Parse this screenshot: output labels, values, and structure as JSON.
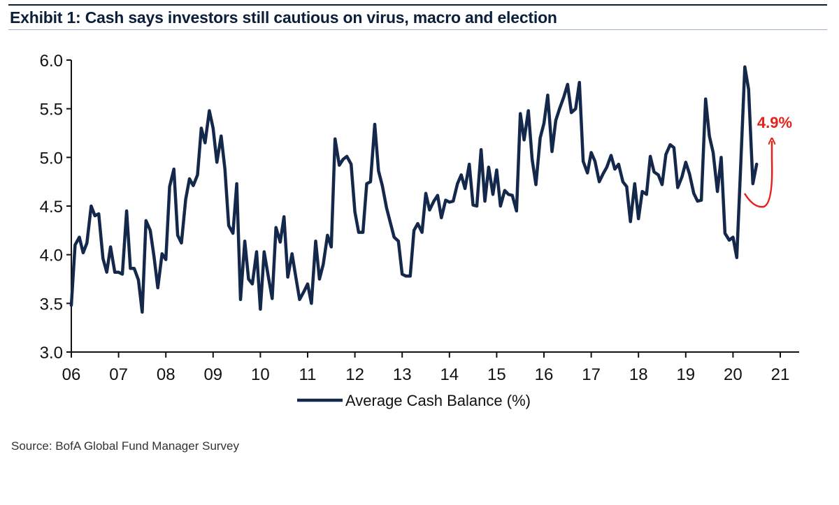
{
  "header": {
    "title": "Exhibit 1: Cash says investors still cautious on virus, macro and election"
  },
  "footer": {
    "source": "Source: BofA Global Fund Manager Survey"
  },
  "colors": {
    "series": "#14284b",
    "annotation": "#e8201b",
    "axis": "#111111"
  },
  "chart_data": {
    "type": "line",
    "title": "Exhibit 1: Cash says investors still cautious on virus, macro and election",
    "xlabel": "",
    "ylabel": "",
    "xlim": [
      2006,
      2021.3
    ],
    "ylim": [
      3.0,
      6.0
    ],
    "x_ticks": [
      "06",
      "07",
      "08",
      "09",
      "10",
      "11",
      "12",
      "13",
      "14",
      "15",
      "16",
      "17",
      "18",
      "19",
      "20",
      "21"
    ],
    "y_ticks": [
      "3.0",
      "3.5",
      "4.0",
      "4.5",
      "5.0",
      "5.5",
      "6.0"
    ],
    "grid": false,
    "legend": {
      "position": "bottom-center",
      "entries": [
        "Average Cash Balance (%)"
      ]
    },
    "annotation": {
      "text": "4.9%",
      "color": "#e8201b"
    },
    "series": [
      {
        "name": "Average Cash Balance (%)",
        "points": [
          [
            2006.0,
            3.48
          ],
          [
            2006.08,
            4.1
          ],
          [
            2006.17,
            4.18
          ],
          [
            2006.25,
            4.02
          ],
          [
            2006.33,
            4.12
          ],
          [
            2006.42,
            4.5
          ],
          [
            2006.5,
            4.4
          ],
          [
            2006.58,
            4.42
          ],
          [
            2006.67,
            3.96
          ],
          [
            2006.75,
            3.82
          ],
          [
            2006.83,
            4.08
          ],
          [
            2006.92,
            3.82
          ],
          [
            2007.0,
            3.82
          ],
          [
            2007.08,
            3.8
          ],
          [
            2007.17,
            4.45
          ],
          [
            2007.25,
            3.86
          ],
          [
            2007.33,
            3.86
          ],
          [
            2007.42,
            3.74
          ],
          [
            2007.5,
            3.41
          ],
          [
            2007.58,
            4.35
          ],
          [
            2007.67,
            4.25
          ],
          [
            2007.75,
            3.98
          ],
          [
            2007.83,
            3.66
          ],
          [
            2007.92,
            4.01
          ],
          [
            2008.0,
            3.95
          ],
          [
            2008.08,
            4.7
          ],
          [
            2008.17,
            4.88
          ],
          [
            2008.25,
            4.2
          ],
          [
            2008.33,
            4.12
          ],
          [
            2008.42,
            4.57
          ],
          [
            2008.5,
            4.78
          ],
          [
            2008.58,
            4.71
          ],
          [
            2008.67,
            4.82
          ],
          [
            2008.75,
            5.3
          ],
          [
            2008.83,
            5.15
          ],
          [
            2008.92,
            5.48
          ],
          [
            2009.0,
            5.3
          ],
          [
            2009.08,
            4.95
          ],
          [
            2009.17,
            5.22
          ],
          [
            2009.25,
            4.88
          ],
          [
            2009.33,
            4.3
          ],
          [
            2009.42,
            4.22
          ],
          [
            2009.5,
            4.73
          ],
          [
            2009.58,
            3.54
          ],
          [
            2009.67,
            4.14
          ],
          [
            2009.75,
            3.75
          ],
          [
            2009.83,
            3.7
          ],
          [
            2009.92,
            4.03
          ],
          [
            2010.0,
            3.44
          ],
          [
            2010.08,
            4.03
          ],
          [
            2010.17,
            3.77
          ],
          [
            2010.25,
            3.55
          ],
          [
            2010.33,
            4.28
          ],
          [
            2010.42,
            4.13
          ],
          [
            2010.5,
            4.39
          ],
          [
            2010.58,
            3.77
          ],
          [
            2010.67,
            4.01
          ],
          [
            2010.75,
            3.77
          ],
          [
            2010.83,
            3.54
          ],
          [
            2010.92,
            3.62
          ],
          [
            2011.0,
            3.7
          ],
          [
            2011.08,
            3.5
          ],
          [
            2011.17,
            4.14
          ],
          [
            2011.25,
            3.75
          ],
          [
            2011.33,
            3.9
          ],
          [
            2011.42,
            4.2
          ],
          [
            2011.5,
            4.08
          ],
          [
            2011.58,
            5.19
          ],
          [
            2011.67,
            4.92
          ],
          [
            2011.75,
            4.98
          ],
          [
            2011.83,
            5.01
          ],
          [
            2011.92,
            4.93
          ],
          [
            2012.0,
            4.44
          ],
          [
            2012.08,
            4.23
          ],
          [
            2012.17,
            4.23
          ],
          [
            2012.25,
            4.73
          ],
          [
            2012.33,
            4.75
          ],
          [
            2012.42,
            5.34
          ],
          [
            2012.5,
            4.86
          ],
          [
            2012.58,
            4.71
          ],
          [
            2012.67,
            4.48
          ],
          [
            2012.75,
            4.33
          ],
          [
            2012.83,
            4.18
          ],
          [
            2012.92,
            4.14
          ],
          [
            2013.0,
            3.8
          ],
          [
            2013.08,
            3.78
          ],
          [
            2013.17,
            3.78
          ],
          [
            2013.25,
            4.25
          ],
          [
            2013.33,
            4.32
          ],
          [
            2013.42,
            4.23
          ],
          [
            2013.5,
            4.63
          ],
          [
            2013.58,
            4.46
          ],
          [
            2013.67,
            4.55
          ],
          [
            2013.75,
            4.61
          ],
          [
            2013.83,
            4.38
          ],
          [
            2013.92,
            4.56
          ],
          [
            2014.0,
            4.54
          ],
          [
            2014.08,
            4.55
          ],
          [
            2014.17,
            4.73
          ],
          [
            2014.25,
            4.82
          ],
          [
            2014.33,
            4.68
          ],
          [
            2014.42,
            4.93
          ],
          [
            2014.5,
            4.51
          ],
          [
            2014.58,
            4.5
          ],
          [
            2014.67,
            5.08
          ],
          [
            2014.75,
            4.55
          ],
          [
            2014.83,
            4.9
          ],
          [
            2014.92,
            4.62
          ],
          [
            2015.0,
            4.87
          ],
          [
            2015.08,
            4.5
          ],
          [
            2015.17,
            4.66
          ],
          [
            2015.25,
            4.62
          ],
          [
            2015.33,
            4.61
          ],
          [
            2015.42,
            4.45
          ],
          [
            2015.5,
            5.45
          ],
          [
            2015.58,
            5.18
          ],
          [
            2015.67,
            5.48
          ],
          [
            2015.75,
            4.98
          ],
          [
            2015.83,
            4.72
          ],
          [
            2015.92,
            5.2
          ],
          [
            2016.0,
            5.35
          ],
          [
            2016.08,
            5.64
          ],
          [
            2016.17,
            5.06
          ],
          [
            2016.25,
            5.38
          ],
          [
            2016.33,
            5.5
          ],
          [
            2016.42,
            5.62
          ],
          [
            2016.5,
            5.75
          ],
          [
            2016.58,
            5.46
          ],
          [
            2016.67,
            5.5
          ],
          [
            2016.75,
            5.77
          ],
          [
            2016.83,
            4.96
          ],
          [
            2016.92,
            4.84
          ],
          [
            2017.0,
            5.05
          ],
          [
            2017.08,
            4.96
          ],
          [
            2017.17,
            4.75
          ],
          [
            2017.25,
            4.83
          ],
          [
            2017.33,
            4.9
          ],
          [
            2017.42,
            5.02
          ],
          [
            2017.5,
            4.88
          ],
          [
            2017.58,
            4.93
          ],
          [
            2017.67,
            4.75
          ],
          [
            2017.75,
            4.7
          ],
          [
            2017.83,
            4.34
          ],
          [
            2017.92,
            4.73
          ],
          [
            2018.0,
            4.37
          ],
          [
            2018.08,
            4.65
          ],
          [
            2018.17,
            4.62
          ],
          [
            2018.25,
            5.01
          ],
          [
            2018.33,
            4.85
          ],
          [
            2018.42,
            4.82
          ],
          [
            2018.5,
            4.72
          ],
          [
            2018.58,
            5.03
          ],
          [
            2018.67,
            5.13
          ],
          [
            2018.75,
            5.1
          ],
          [
            2018.83,
            4.69
          ],
          [
            2018.92,
            4.8
          ],
          [
            2019.0,
            4.95
          ],
          [
            2019.08,
            4.83
          ],
          [
            2019.17,
            4.63
          ],
          [
            2019.25,
            4.55
          ],
          [
            2019.33,
            4.56
          ],
          [
            2019.42,
            5.6
          ],
          [
            2019.5,
            5.22
          ],
          [
            2019.58,
            5.05
          ],
          [
            2019.67,
            4.65
          ],
          [
            2019.75,
            5.0
          ],
          [
            2019.83,
            4.22
          ],
          [
            2019.92,
            4.15
          ],
          [
            2020.0,
            4.18
          ],
          [
            2020.08,
            3.97
          ],
          [
            2020.17,
            5.0
          ],
          [
            2020.25,
            5.93
          ],
          [
            2020.33,
            5.7
          ],
          [
            2020.42,
            4.73
          ],
          [
            2020.5,
            4.93
          ]
        ]
      }
    ]
  }
}
